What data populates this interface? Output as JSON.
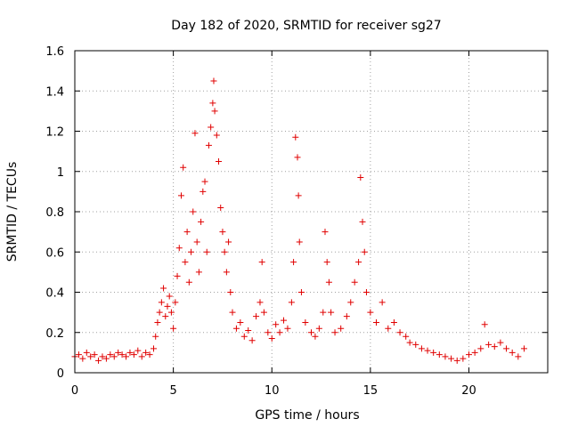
{
  "chart_data": {
    "type": "scatter",
    "title": "Day 182 of 2020, SRMTID for receiver sg27",
    "xlabel": "GPS time / hours",
    "ylabel": "SRMTID / TECUs",
    "xlim": [
      0,
      24
    ],
    "ylim": [
      0,
      1.6
    ],
    "x_ticks": [
      0,
      5,
      10,
      15,
      20
    ],
    "x_tick_labels": [
      "0",
      "5",
      "10",
      "15",
      "20"
    ],
    "y_ticks": [
      0,
      0.2,
      0.4,
      0.6,
      0.8,
      1.0,
      1.2,
      1.4,
      1.6
    ],
    "y_tick_labels": [
      "0",
      "0.2",
      "0.4",
      "0.6",
      "0.8",
      "1",
      "1.2",
      "1.4",
      "1.6"
    ],
    "grid": true,
    "marker": "plus",
    "color": "#e00000",
    "series": [
      {
        "name": "sg27",
        "points": [
          [
            0.0,
            0.08
          ],
          [
            0.2,
            0.09
          ],
          [
            0.4,
            0.07
          ],
          [
            0.6,
            0.1
          ],
          [
            0.8,
            0.08
          ],
          [
            1.0,
            0.09
          ],
          [
            1.2,
            0.06
          ],
          [
            1.4,
            0.08
          ],
          [
            1.6,
            0.07
          ],
          [
            1.8,
            0.09
          ],
          [
            2.0,
            0.08
          ],
          [
            2.2,
            0.1
          ],
          [
            2.4,
            0.09
          ],
          [
            2.6,
            0.08
          ],
          [
            2.8,
            0.1
          ],
          [
            3.0,
            0.09
          ],
          [
            3.2,
            0.11
          ],
          [
            3.4,
            0.08
          ],
          [
            3.6,
            0.1
          ],
          [
            3.8,
            0.09
          ],
          [
            4.0,
            0.12
          ],
          [
            4.1,
            0.18
          ],
          [
            4.2,
            0.25
          ],
          [
            4.3,
            0.3
          ],
          [
            4.4,
            0.35
          ],
          [
            4.5,
            0.42
          ],
          [
            4.6,
            0.28
          ],
          [
            4.7,
            0.33
          ],
          [
            4.8,
            0.38
          ],
          [
            4.9,
            0.3
          ],
          [
            5.0,
            0.22
          ],
          [
            5.1,
            0.35
          ],
          [
            5.2,
            0.48
          ],
          [
            5.3,
            0.62
          ],
          [
            5.4,
            0.88
          ],
          [
            5.5,
            1.02
          ],
          [
            5.6,
            0.55
          ],
          [
            5.7,
            0.7
          ],
          [
            5.8,
            0.45
          ],
          [
            5.9,
            0.6
          ],
          [
            6.0,
            0.8
          ],
          [
            6.1,
            1.19
          ],
          [
            6.2,
            0.65
          ],
          [
            6.3,
            0.5
          ],
          [
            6.4,
            0.75
          ],
          [
            6.5,
            0.9
          ],
          [
            6.6,
            0.95
          ],
          [
            6.7,
            0.6
          ],
          [
            6.8,
            1.13
          ],
          [
            6.9,
            1.22
          ],
          [
            7.0,
            1.34
          ],
          [
            7.05,
            1.45
          ],
          [
            7.1,
            1.3
          ],
          [
            7.2,
            1.18
          ],
          [
            7.3,
            1.05
          ],
          [
            7.4,
            0.82
          ],
          [
            7.5,
            0.7
          ],
          [
            7.6,
            0.6
          ],
          [
            7.7,
            0.5
          ],
          [
            7.8,
            0.65
          ],
          [
            7.9,
            0.4
          ],
          [
            8.0,
            0.3
          ],
          [
            8.2,
            0.22
          ],
          [
            8.4,
            0.25
          ],
          [
            8.6,
            0.18
          ],
          [
            8.8,
            0.21
          ],
          [
            9.0,
            0.16
          ],
          [
            9.2,
            0.28
          ],
          [
            9.4,
            0.35
          ],
          [
            9.5,
            0.55
          ],
          [
            9.6,
            0.3
          ],
          [
            9.8,
            0.2
          ],
          [
            10.0,
            0.17
          ],
          [
            10.2,
            0.24
          ],
          [
            10.4,
            0.2
          ],
          [
            10.6,
            0.26
          ],
          [
            10.8,
            0.22
          ],
          [
            11.0,
            0.35
          ],
          [
            11.1,
            0.55
          ],
          [
            11.2,
            1.17
          ],
          [
            11.3,
            1.07
          ],
          [
            11.35,
            0.88
          ],
          [
            11.4,
            0.65
          ],
          [
            11.5,
            0.4
          ],
          [
            11.7,
            0.25
          ],
          [
            12.0,
            0.2
          ],
          [
            12.2,
            0.18
          ],
          [
            12.4,
            0.22
          ],
          [
            12.6,
            0.3
          ],
          [
            12.7,
            0.7
          ],
          [
            12.8,
            0.55
          ],
          [
            12.9,
            0.45
          ],
          [
            13.0,
            0.3
          ],
          [
            13.2,
            0.2
          ],
          [
            13.5,
            0.22
          ],
          [
            13.8,
            0.28
          ],
          [
            14.0,
            0.35
          ],
          [
            14.2,
            0.45
          ],
          [
            14.4,
            0.55
          ],
          [
            14.5,
            0.97
          ],
          [
            14.6,
            0.75
          ],
          [
            14.7,
            0.6
          ],
          [
            14.8,
            0.4
          ],
          [
            15.0,
            0.3
          ],
          [
            15.3,
            0.25
          ],
          [
            15.6,
            0.35
          ],
          [
            15.9,
            0.22
          ],
          [
            16.2,
            0.25
          ],
          [
            16.5,
            0.2
          ],
          [
            16.8,
            0.18
          ],
          [
            17.0,
            0.15
          ],
          [
            17.3,
            0.14
          ],
          [
            17.6,
            0.12
          ],
          [
            17.9,
            0.11
          ],
          [
            18.2,
            0.1
          ],
          [
            18.5,
            0.09
          ],
          [
            18.8,
            0.08
          ],
          [
            19.1,
            0.07
          ],
          [
            19.4,
            0.06
          ],
          [
            19.7,
            0.07
          ],
          [
            20.0,
            0.09
          ],
          [
            20.3,
            0.1
          ],
          [
            20.6,
            0.12
          ],
          [
            20.8,
            0.24
          ],
          [
            21.0,
            0.14
          ],
          [
            21.3,
            0.13
          ],
          [
            21.6,
            0.15
          ],
          [
            21.9,
            0.12
          ],
          [
            22.2,
            0.1
          ],
          [
            22.5,
            0.08
          ],
          [
            22.8,
            0.12
          ]
        ]
      }
    ]
  }
}
